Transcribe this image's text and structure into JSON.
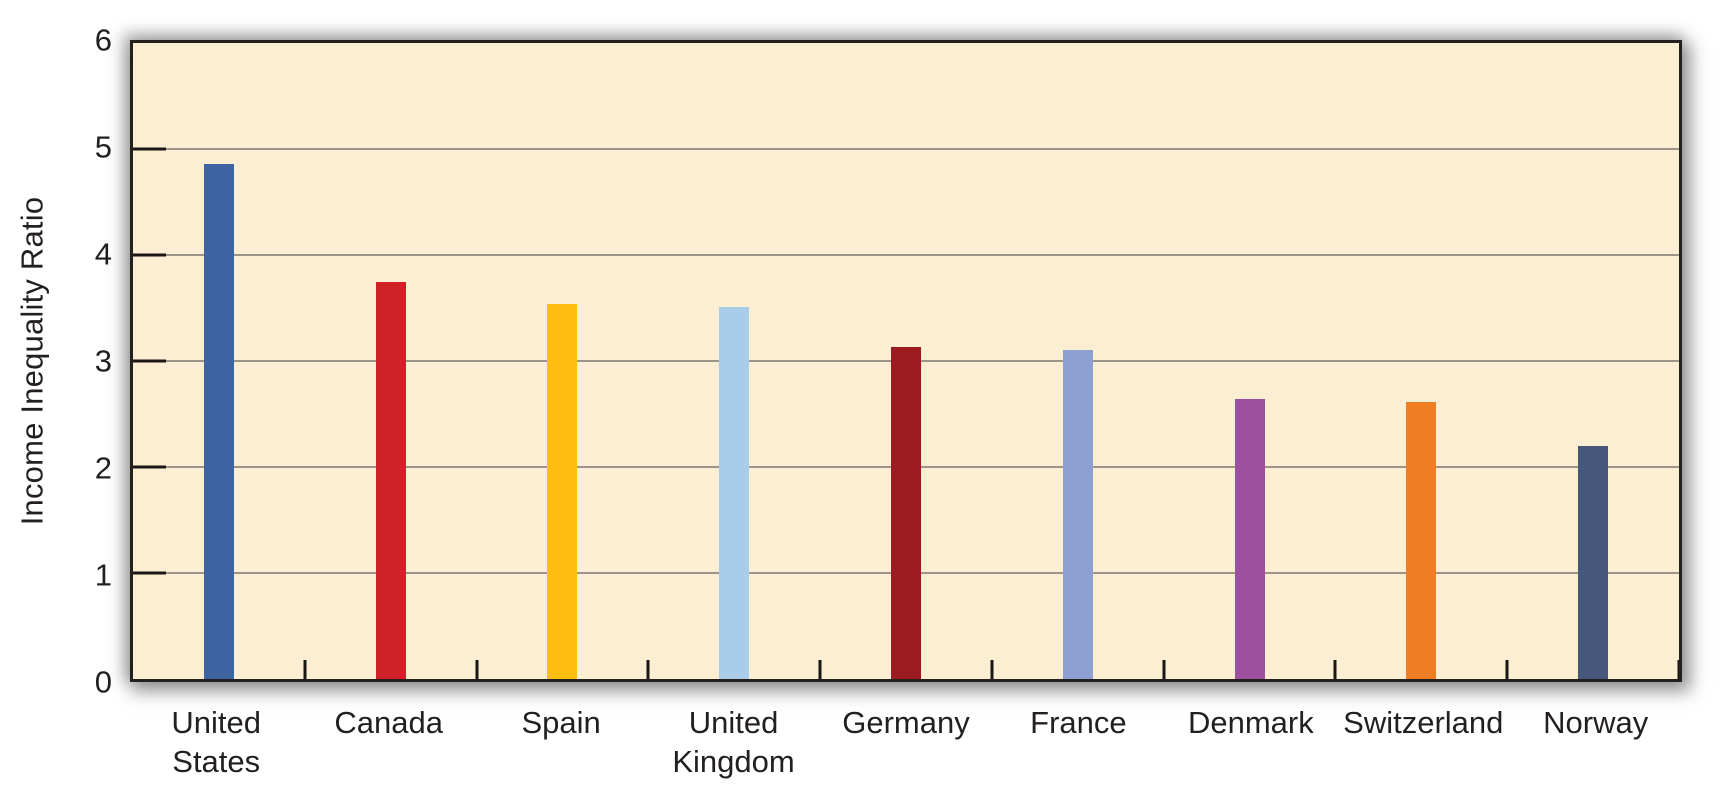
{
  "chart_data": {
    "type": "bar",
    "title": "",
    "xlabel": "",
    "ylabel": "Income Inequality Ratio",
    "ylim": [
      0,
      6
    ],
    "yticks": [
      0,
      1,
      2,
      3,
      4,
      5,
      6
    ],
    "grid": "horizontal gridlines at each integer, drawn behind bars",
    "legend": "none",
    "plot_background": "#FBEED3",
    "gridline_color": "#9B9488",
    "axis_color": "#24201d",
    "tick_color": "#1a1715",
    "text_color": "#231F20",
    "categories": [
      "United States",
      "Canada",
      "Spain",
      "United Kingdom",
      "Germany",
      "France",
      "Denmark",
      "Switzerland",
      "Norway"
    ],
    "category_label_lines": [
      [
        "United",
        "States"
      ],
      [
        "Canada"
      ],
      [
        "Spain"
      ],
      [
        "United",
        "Kingdom"
      ],
      [
        "Germany"
      ],
      [
        "France"
      ],
      [
        "Denmark"
      ],
      [
        "Switzerland"
      ],
      [
        "Norway"
      ]
    ],
    "values": [
      4.86,
      3.75,
      3.54,
      3.51,
      3.13,
      3.1,
      2.64,
      2.61,
      2.2
    ],
    "bar_colors": [
      "#3D64A1",
      "#D02028",
      "#FDBE10",
      "#A9CDE9",
      "#9C1B20",
      "#8EA0D1",
      "#9D4FA0",
      "#EF7D24",
      "#45587C"
    ]
  }
}
